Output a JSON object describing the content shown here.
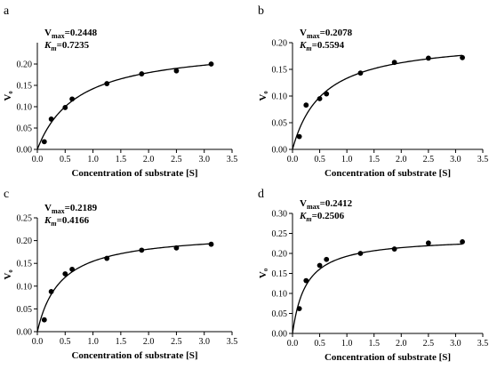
{
  "figure": {
    "panels": [
      "a",
      "b",
      "c",
      "d"
    ]
  },
  "chart_data": [
    {
      "panel": "a",
      "type": "scatter",
      "model": "michaelis-menten",
      "vmax_label": "V",
      "vmax_sub": "max",
      "vmax_value": "=0.2448",
      "km_label": "K",
      "km_sub": "m",
      "km_value": "=0.7235",
      "vmax": 0.2448,
      "km": 0.7235,
      "xlabel": "Concentration of substrate [S]",
      "ylabel": "V₀",
      "xlim": [
        0,
        3.5
      ],
      "ylim": [
        0,
        0.25
      ],
      "xticks": [
        0.0,
        0.5,
        1.0,
        1.5,
        2.0,
        2.5,
        3.0,
        3.5
      ],
      "yticks": [
        0.0,
        0.05,
        0.1,
        0.15,
        0.2
      ],
      "xtick_labels": [
        "0.0",
        "0.5",
        "1.0",
        "1.5",
        "2.0",
        "2.5",
        "3.0",
        "3.5"
      ],
      "ytick_labels": [
        "0.00",
        "0.05",
        "0.10",
        "0.15",
        "0.20"
      ],
      "x": [
        0.125,
        0.25,
        0.5,
        0.625,
        1.25,
        1.875,
        2.5,
        3.125
      ],
      "y": [
        0.018,
        0.071,
        0.098,
        0.118,
        0.154,
        0.177,
        0.184,
        0.2
      ]
    },
    {
      "panel": "b",
      "type": "scatter",
      "model": "michaelis-menten",
      "vmax_label": "V",
      "vmax_sub": "max",
      "vmax_value": "=0.2078",
      "km_label": "K",
      "km_sub": "m",
      "km_value": "=0.5594",
      "vmax": 0.2078,
      "km": 0.5594,
      "xlabel": "Concentration of substrate [S]",
      "ylabel": "V₀",
      "xlim": [
        0,
        3.5
      ],
      "ylim": [
        0,
        0.2
      ],
      "xticks": [
        0.0,
        0.5,
        1.0,
        1.5,
        2.0,
        2.5,
        3.0,
        3.5
      ],
      "yticks": [
        0.0,
        0.05,
        0.1,
        0.15,
        0.2
      ],
      "xtick_labels": [
        "0.0",
        "0.5",
        "1.0",
        "1.5",
        "2.0",
        "2.5",
        "3.0",
        "3.5"
      ],
      "ytick_labels": [
        "0.00",
        "0.05",
        "0.10",
        "0.15",
        "0.20"
      ],
      "x": [
        0.125,
        0.25,
        0.5,
        0.625,
        1.25,
        1.875,
        2.5,
        3.125
      ],
      "y": [
        0.024,
        0.083,
        0.095,
        0.104,
        0.143,
        0.163,
        0.171,
        0.172
      ]
    },
    {
      "panel": "c",
      "type": "scatter",
      "model": "michaelis-menten",
      "vmax_label": "V",
      "vmax_sub": "max",
      "vmax_value": "=0.2189",
      "km_label": "K",
      "km_sub": "m",
      "km_value": "=0.4166",
      "vmax": 0.2189,
      "km": 0.4166,
      "xlabel": "Concentration of substrate [S]",
      "ylabel": "V₀",
      "xlim": [
        0,
        3.5
      ],
      "ylim": [
        0,
        0.25
      ],
      "xticks": [
        0.0,
        0.5,
        1.0,
        1.5,
        2.0,
        2.5,
        3.0,
        3.5
      ],
      "yticks": [
        0.0,
        0.05,
        0.1,
        0.15,
        0.2,
        0.25
      ],
      "xtick_labels": [
        "0.0",
        "0.5",
        "1.0",
        "1.5",
        "2.0",
        "2.5",
        "3.0",
        "3.5"
      ],
      "ytick_labels": [
        "0.00",
        "0.05",
        "0.10",
        "0.15",
        "0.20",
        "0.25"
      ],
      "x": [
        0.125,
        0.25,
        0.5,
        0.625,
        1.25,
        1.875,
        2.5,
        3.125
      ],
      "y": [
        0.026,
        0.088,
        0.127,
        0.137,
        0.161,
        0.179,
        0.184,
        0.192
      ]
    },
    {
      "panel": "d",
      "type": "scatter",
      "model": "michaelis-menten",
      "vmax_label": "V",
      "vmax_sub": "max",
      "vmax_value": "=0.2412",
      "km_label": "K",
      "km_sub": "m",
      "km_value": "=0.2506",
      "vmax": 0.2412,
      "km": 0.2506,
      "xlabel": "Concentration of substrate [S]",
      "ylabel": "V₀",
      "xlim": [
        0,
        3.5
      ],
      "ylim": [
        0,
        0.3
      ],
      "xticks": [
        0.0,
        0.5,
        1.0,
        1.5,
        2.0,
        2.5,
        3.0,
        3.5
      ],
      "yticks": [
        0.0,
        0.05,
        0.1,
        0.15,
        0.2,
        0.25,
        0.3
      ],
      "xtick_labels": [
        "0.0",
        "0.5",
        "1.0",
        "1.5",
        "2.0",
        "2.5",
        "3.0",
        "3.5"
      ],
      "ytick_labels": [
        "0.00",
        "0.05",
        "0.10",
        "0.15",
        "0.20",
        "0.25",
        "0.30"
      ],
      "x": [
        0.125,
        0.25,
        0.5,
        0.625,
        1.25,
        1.875,
        2.5,
        3.125
      ],
      "y": [
        0.062,
        0.132,
        0.17,
        0.185,
        0.2,
        0.211,
        0.226,
        0.229
      ]
    }
  ]
}
